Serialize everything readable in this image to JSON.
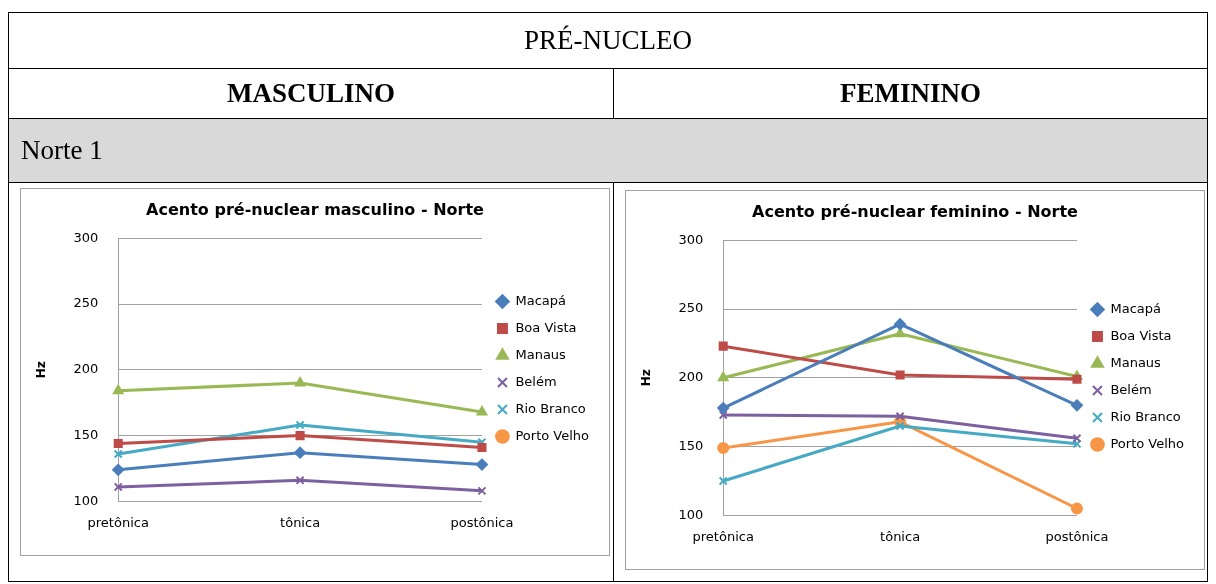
{
  "chart_data": [
    {
      "type": "other",
      "title": "PRÉ-NUCLEO",
      "annotations": [
        "MASCULINO",
        "FEMININO",
        "Norte 1"
      ]
    },
    {
      "type": "line",
      "title": "Acento pré-nuclear masculino - Norte",
      "ylabel": "Hz",
      "categories": [
        "pretônica",
        "tônica",
        "postônica"
      ],
      "ylim": [
        100,
        300
      ],
      "yticks": [
        100,
        150,
        200,
        250,
        300
      ],
      "grid": "y",
      "legend": "right",
      "series": [
        {
          "name": "Macapá",
          "color": "#4a7ebb",
          "marker": "diamond",
          "values": [
            124,
            137,
            128
          ]
        },
        {
          "name": "Boa Vista",
          "color": "#be4b48",
          "marker": "square",
          "values": [
            144,
            150,
            141
          ]
        },
        {
          "name": "Manaus",
          "color": "#98b954",
          "marker": "triangle",
          "values": [
            184,
            190,
            168
          ]
        },
        {
          "name": "Belém",
          "color": "#7d60a0",
          "marker": "cross",
          "values": [
            111,
            116,
            108
          ]
        },
        {
          "name": "Rio Branco",
          "color": "#46aac5",
          "marker": "cross",
          "values": [
            136,
            158,
            145
          ]
        },
        {
          "name": "Porto Velho",
          "color": "#f79646",
          "marker": "circle",
          "values": [
            null,
            null,
            null
          ]
        }
      ]
    },
    {
      "type": "line",
      "title": "Acento pré-nuclear feminino - Norte",
      "ylabel": "Hz",
      "categories": [
        "pretônica",
        "tônica",
        "postônica"
      ],
      "ylim": [
        100,
        300
      ],
      "yticks": [
        100,
        150,
        200,
        250,
        300
      ],
      "grid": "y",
      "legend": "right",
      "series": [
        {
          "name": "Macapá",
          "color": "#4a7ebb",
          "marker": "diamond",
          "values": [
            178,
            239,
            180
          ]
        },
        {
          "name": "Boa Vista",
          "color": "#be4b48",
          "marker": "square",
          "values": [
            223,
            202,
            199
          ]
        },
        {
          "name": "Manaus",
          "color": "#98b954",
          "marker": "triangle",
          "values": [
            200,
            232,
            201
          ]
        },
        {
          "name": "Belém",
          "color": "#7d60a0",
          "marker": "cross",
          "values": [
            173,
            172,
            156
          ]
        },
        {
          "name": "Rio Branco",
          "color": "#46aac5",
          "marker": "cross",
          "values": [
            125,
            165,
            152
          ]
        },
        {
          "name": "Porto Velho",
          "color": "#f79646",
          "marker": "circle",
          "values": [
            149,
            168,
            105
          ]
        }
      ]
    }
  ]
}
